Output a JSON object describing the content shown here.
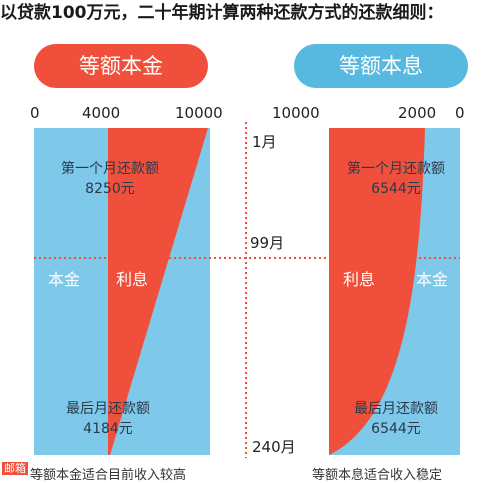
{
  "title": "以贷款100万元，二十年期计算两种还款方式的还款细则：",
  "left_panel": {
    "name": "等额本金",
    "axis_ticks": [
      "0",
      "4000",
      "10000"
    ],
    "first_month_label": "第一个月还款额",
    "first_month_value": "8250元",
    "last_month_label": "最后月还款额",
    "last_month_value": "4184元",
    "principal_label": "本金",
    "interest_label": "利息",
    "footnote": "等额本金适合目前收入较高",
    "colors": {
      "principal": "#7ec8ea",
      "interest": "#f0503b"
    }
  },
  "right_panel": {
    "name": "等额本息",
    "axis_ticks": [
      "10000",
      "2000",
      "0"
    ],
    "first_month_label": "第一个月还款额",
    "first_month_value": "6544元",
    "last_month_label": "最后月还款额",
    "last_month_value": "6544元",
    "principal_label": "本金",
    "interest_label": "利息",
    "footnote": "等额本息适合收入稳定",
    "colors": {
      "principal": "#7ec8ea",
      "interest": "#f0503b"
    }
  },
  "months": [
    "1月",
    "99月",
    "240月"
  ],
  "logo_text": "邮箱"
}
